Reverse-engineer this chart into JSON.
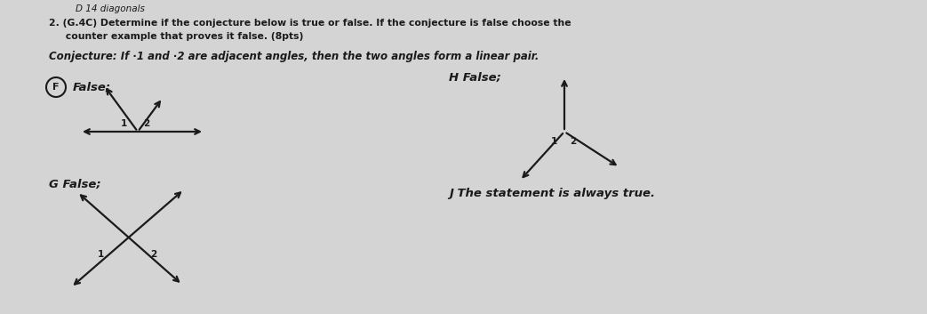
{
  "bg_color": "#d4d4d4",
  "title_line1": "D 14 diagonals",
  "question_line1": "2. (G.4C) Determine if the conjecture below is true or false. If the conjecture is false choose the",
  "question_line2": "     counter example that proves it false. (8pts)",
  "conjecture": "Conjecture: If ∙1 and ∙2 are adjacent angles, then the two angles form a linear pair.",
  "option_F_label": "False;",
  "option_G_label": "G False;",
  "option_H_label": "H False;",
  "option_J_label": "J The statement is always true.",
  "text_color": "#1a1a1a",
  "line_color": "#1a1a1a",
  "lw": 1.6
}
